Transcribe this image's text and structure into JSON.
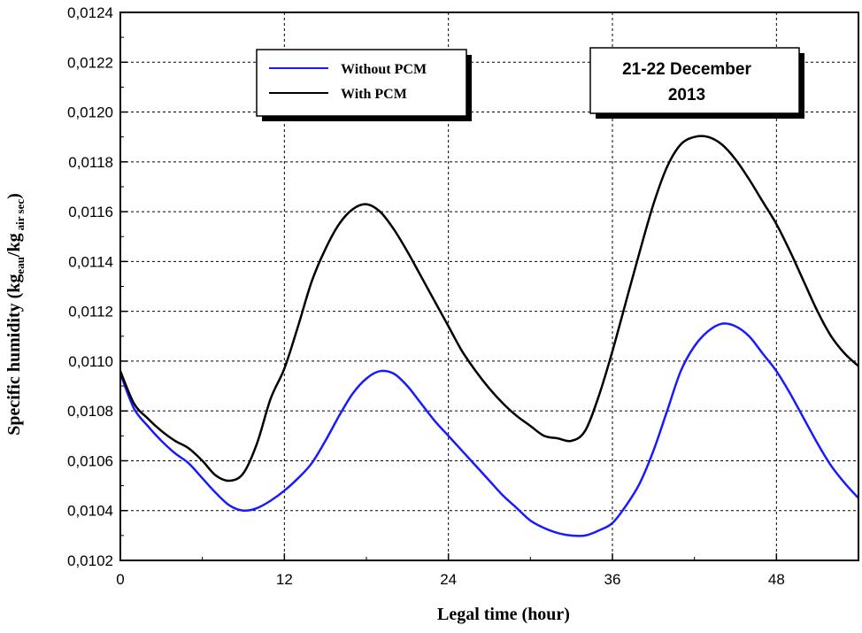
{
  "chart_data": {
    "type": "line",
    "xlabel": "Legal time (hour)",
    "ylabel": {
      "main": "Specific humidity (kg",
      "sub1": "eau",
      "mid": "/kg",
      "sub2": "air sec",
      "end": ")"
    },
    "xlim": [
      0,
      54
    ],
    "ylim": [
      0.0102,
      0.0124
    ],
    "x_ticks": [
      0,
      12,
      24,
      36,
      48
    ],
    "x_tick_labels": [
      "0",
      "12",
      "24",
      "36",
      "48"
    ],
    "y_ticks": [
      0.0102,
      0.0104,
      0.0106,
      0.0108,
      0.011,
      0.0112,
      0.0114,
      0.0116,
      0.0118,
      0.012,
      0.0122,
      0.0124
    ],
    "y_tick_labels": [
      "0,0102",
      "0,0104",
      "0,0106",
      "0,0108",
      "0,0110",
      "0,0112",
      "0,0114",
      "0,0116",
      "0,0118",
      "0,0120",
      "0,0122",
      "0,0124"
    ],
    "grid": true,
    "legend_position": "top-center-left",
    "annotation": {
      "line1": "21-22  December",
      "line2": "2013"
    },
    "series": [
      {
        "name": "Without PCM",
        "color": "#1a1aff",
        "x": [
          0,
          1,
          2,
          3,
          4,
          5,
          6,
          7,
          8,
          9,
          10,
          11,
          12,
          13,
          14,
          15,
          16,
          17,
          18,
          19,
          20,
          21,
          22,
          23,
          24,
          25,
          26,
          27,
          28,
          29,
          30,
          31,
          32,
          33,
          34,
          35,
          36,
          37,
          38,
          39,
          40,
          41,
          42,
          43,
          44,
          45,
          46,
          47,
          48,
          49,
          50,
          51,
          52,
          53,
          54
        ],
        "y": [
          0.01095,
          0.01081,
          0.01074,
          0.01068,
          0.01063,
          0.01059,
          0.01053,
          0.01047,
          0.01042,
          0.0104,
          0.01041,
          0.01044,
          0.01048,
          0.01053,
          0.01059,
          0.01068,
          0.01078,
          0.01087,
          0.01093,
          0.01096,
          0.01095,
          0.0109,
          0.01083,
          0.01076,
          0.0107,
          0.01064,
          0.01058,
          0.01052,
          0.01046,
          0.01041,
          0.01036,
          0.01033,
          0.01031,
          0.0103,
          0.0103,
          0.01032,
          0.01035,
          0.01042,
          0.01051,
          0.01064,
          0.0108,
          0.01096,
          0.01106,
          0.01112,
          0.01115,
          0.01114,
          0.0111,
          0.01103,
          0.01096,
          0.01087,
          0.01077,
          0.01067,
          0.01058,
          0.01051,
          0.01045
        ]
      },
      {
        "name": "With PCM",
        "color": "#000000",
        "x": [
          0,
          1,
          2,
          3,
          4,
          5,
          6,
          7,
          8,
          9,
          10,
          11,
          12,
          13,
          14,
          15,
          16,
          17,
          18,
          19,
          20,
          21,
          22,
          23,
          24,
          25,
          26,
          27,
          28,
          29,
          30,
          31,
          32,
          33,
          34,
          35,
          36,
          37,
          38,
          39,
          40,
          41,
          42,
          43,
          44,
          45,
          46,
          47,
          48,
          49,
          50,
          51,
          52,
          53,
          54
        ],
        "y": [
          0.01096,
          0.01083,
          0.01077,
          0.01072,
          0.01068,
          0.01065,
          0.0106,
          0.01054,
          0.01052,
          0.01055,
          0.01067,
          0.01085,
          0.01097,
          0.01114,
          0.01132,
          0.01145,
          0.01155,
          0.01161,
          0.01163,
          0.0116,
          0.01153,
          0.01144,
          0.01134,
          0.01124,
          0.01114,
          0.01104,
          0.01096,
          0.01089,
          0.01083,
          0.01078,
          0.01074,
          0.0107,
          0.01069,
          0.01068,
          0.01072,
          0.01086,
          0.01104,
          0.01124,
          0.01144,
          0.01163,
          0.01178,
          0.01187,
          0.0119,
          0.0119,
          0.01187,
          0.01181,
          0.01173,
          0.01164,
          0.01155,
          0.01144,
          0.01132,
          0.0112,
          0.0111,
          0.01103,
          0.01098
        ]
      }
    ]
  }
}
